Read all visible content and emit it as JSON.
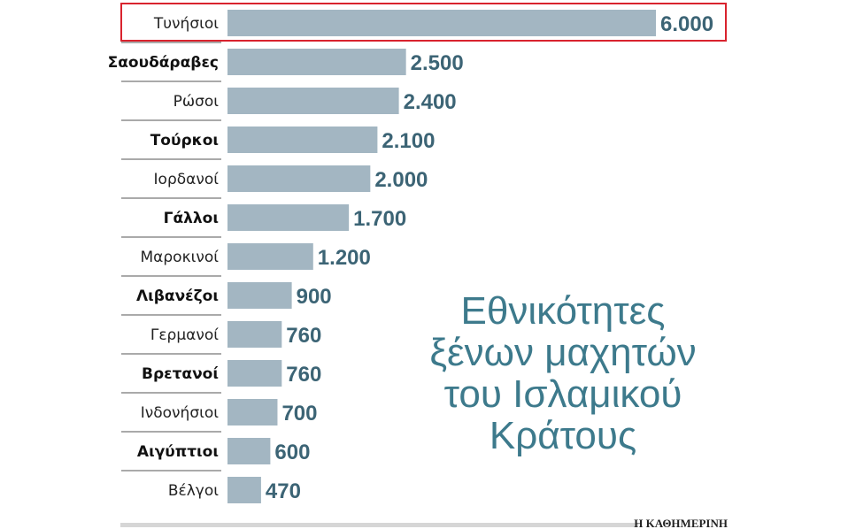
{
  "chart_data": {
    "type": "bar",
    "orientation": "horizontal",
    "categories": [
      "Τυνήσιοι",
      "Σαουδάραβες",
      "Ρώσοι",
      "Τούρκοι",
      "Ιορδανοί",
      "Γάλλοι",
      "Μαροκινοί",
      "Λιβανέζοι",
      "Γερμανοί",
      "Βρετανοί",
      "Ινδονήσιοι",
      "Αιγύπτιοι",
      "Βέλγοι"
    ],
    "values": [
      6000,
      2500,
      2400,
      2100,
      2000,
      1700,
      1200,
      900,
      760,
      760,
      700,
      600,
      470
    ],
    "value_labels": [
      "6.000",
      "2.500",
      "2.400",
      "2.100",
      "2.000",
      "1.700",
      "1.200",
      "900",
      "760",
      "760",
      "700",
      "600",
      "470"
    ],
    "bold_categories": [
      "Σαουδάραβες",
      "Τούρκοι",
      "Γάλλοι",
      "Λιβανέζοι",
      "Βρετανοί",
      "Αιγύπτιοι"
    ],
    "highlighted_category": "Τυνήσιοι",
    "title_lines": [
      "Εθνικότητες",
      "ξένων μαχητών",
      "του Ισλαμικού",
      "Κράτους"
    ],
    "xlabel": "",
    "ylabel": "",
    "xlim": [
      0,
      6000
    ],
    "grid": false,
    "legend": "none",
    "colors": {
      "bar": "#a3b6c2",
      "value_text": "#3c6475",
      "title_text": "#3d7a8c",
      "highlight_box": "#d9232e",
      "divider": "#555555",
      "footer_bar": "#d6d6d6"
    }
  },
  "source": "Η ΚΑΘΗΜΕΡΙΝΗ"
}
